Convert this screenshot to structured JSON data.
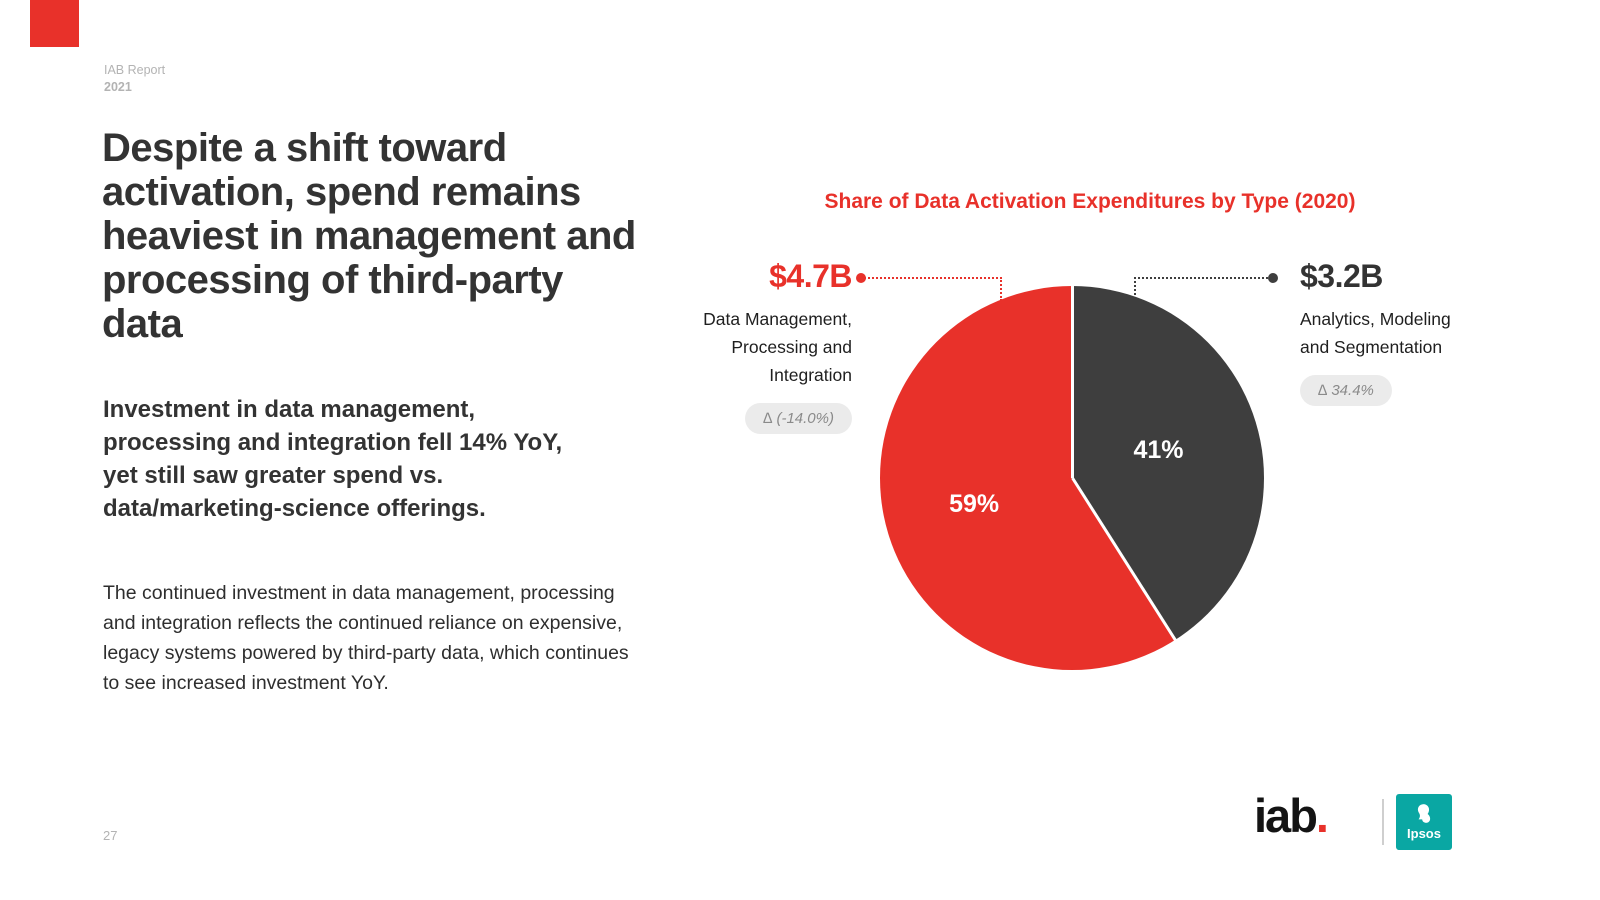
{
  "meta": {
    "report_label": "IAB Report",
    "report_year": "2021",
    "page_number": "27"
  },
  "content": {
    "headline": "Despite a shift toward activation, spend remains heaviest in management and processing of third-party data",
    "subhead": "Investment in data management, processing and integration fell 14% YoY, yet still saw greater spend vs. data/marketing-science offerings.",
    "body": "The continued investment in data management, processing and integration reflects the continued reliance on expensive, legacy systems powered by third-party data, which continues to see increased investment YoY."
  },
  "chart_data": {
    "type": "pie",
    "title": "Share of Data Activation Expenditures by Type (2020)",
    "start_angle": "12 o'clock, clockwise",
    "legend_position": "flanking annotations with dotted leader lines",
    "slices": [
      {
        "name": "Analytics, Modeling and Segmentation",
        "pct": 41,
        "pct_label": "41%",
        "amount": "$3.2B",
        "delta_label": "∆ 34.4%",
        "color": "#3e3e3e",
        "start_deg": 0,
        "end_deg": 147.6
      },
      {
        "name": "Data Management, Processing and Integration",
        "pct": 59,
        "pct_label": "59%",
        "amount": "$4.7B",
        "delta_label": "∆ (-14.0%)",
        "color": "#e8312a",
        "start_deg": 147.6,
        "end_deg": 360
      }
    ]
  },
  "branding": {
    "iab_text": "iab",
    "iab_dot": ".",
    "ipsos_text": "Ipsos"
  },
  "colors": {
    "accent_red": "#e8312a",
    "dark_slice": "#3e3e3e",
    "pill_bg": "#ebebeb",
    "pill_text": "#8a8a8a",
    "ipsos_teal": "#0aa7a3"
  }
}
